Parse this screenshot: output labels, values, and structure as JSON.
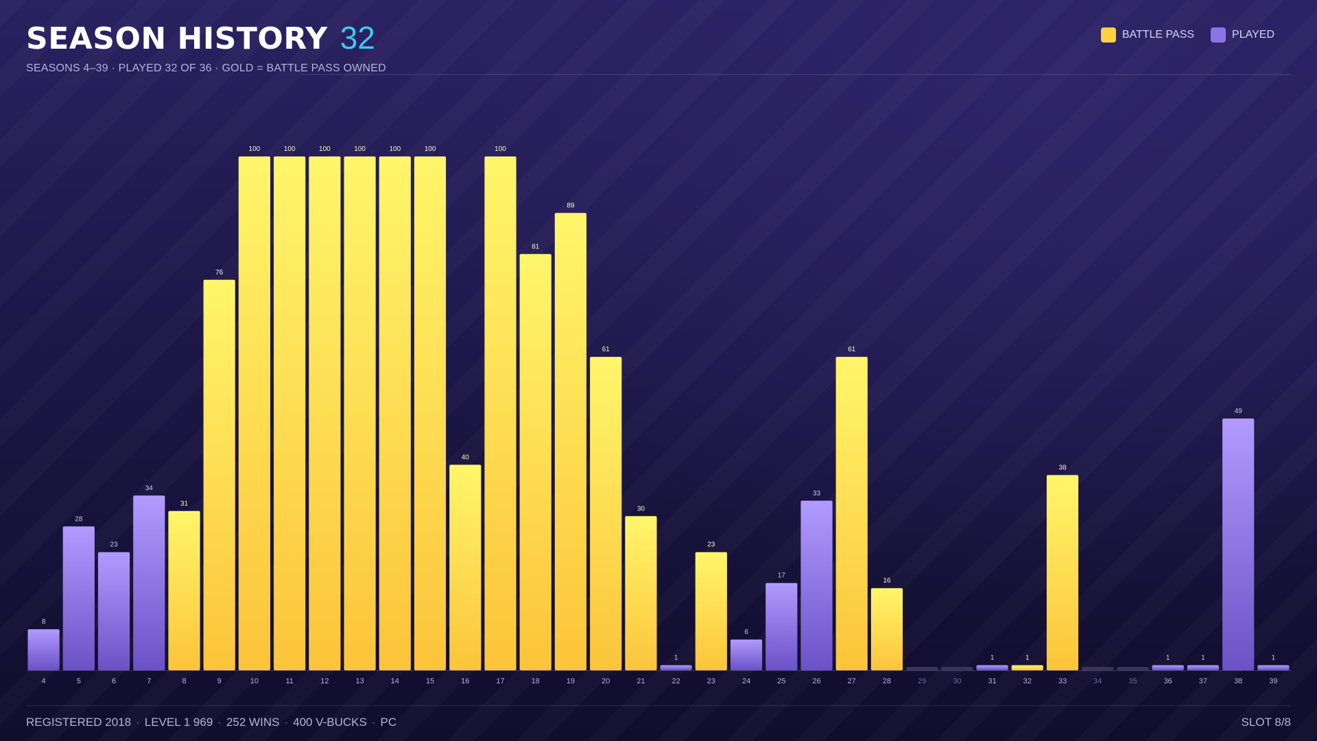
{
  "header": {
    "title": "SEASON HISTORY",
    "count": "32",
    "subtitle": "SEASONS 4–39  ·  PLAYED 32 OF 36  ·  GOLD = BATTLE PASS OWNED"
  },
  "legend": {
    "battle_pass_label": "BATTLE PASS",
    "played_label": "PLAYED"
  },
  "colors": {
    "gold_top": "#fff66b",
    "gold_bottom": "#fcc43a",
    "purple_top": "#b19bff",
    "purple_bottom": "#6a52c6",
    "empty": "#3a3558",
    "title_accent": "#3ec9f0"
  },
  "chart_data": {
    "type": "bar",
    "categories": [
      "4",
      "5",
      "6",
      "7",
      "8",
      "9",
      "10",
      "11",
      "12",
      "13",
      "14",
      "15",
      "16",
      "17",
      "18",
      "19",
      "20",
      "21",
      "22",
      "23",
      "24",
      "25",
      "26",
      "27",
      "28",
      "29",
      "30",
      "31",
      "32",
      "33",
      "34",
      "35",
      "36",
      "37",
      "38",
      "39"
    ],
    "values": [
      8,
      28,
      23,
      34,
      31,
      76,
      100,
      100,
      100,
      100,
      100,
      100,
      40,
      100,
      81,
      89,
      61,
      30,
      1,
      23,
      6,
      17,
      33,
      61,
      16,
      null,
      null,
      1,
      1,
      38,
      null,
      null,
      1,
      1,
      49,
      1
    ],
    "battle_pass": [
      false,
      false,
      false,
      false,
      true,
      true,
      true,
      true,
      true,
      true,
      true,
      true,
      true,
      true,
      true,
      true,
      true,
      true,
      false,
      true,
      false,
      false,
      false,
      true,
      true,
      false,
      false,
      false,
      true,
      true,
      false,
      false,
      false,
      false,
      false,
      false
    ],
    "ylim": [
      0,
      100
    ],
    "grid": false,
    "legend_position": "top-right"
  },
  "footer": {
    "registered": "REGISTERED 2018",
    "level": "LEVEL 1 969",
    "wins": "252 WINS",
    "vbucks": "400 V-BUCKS",
    "platform": "PC",
    "slot": "SLOT 8/8"
  }
}
